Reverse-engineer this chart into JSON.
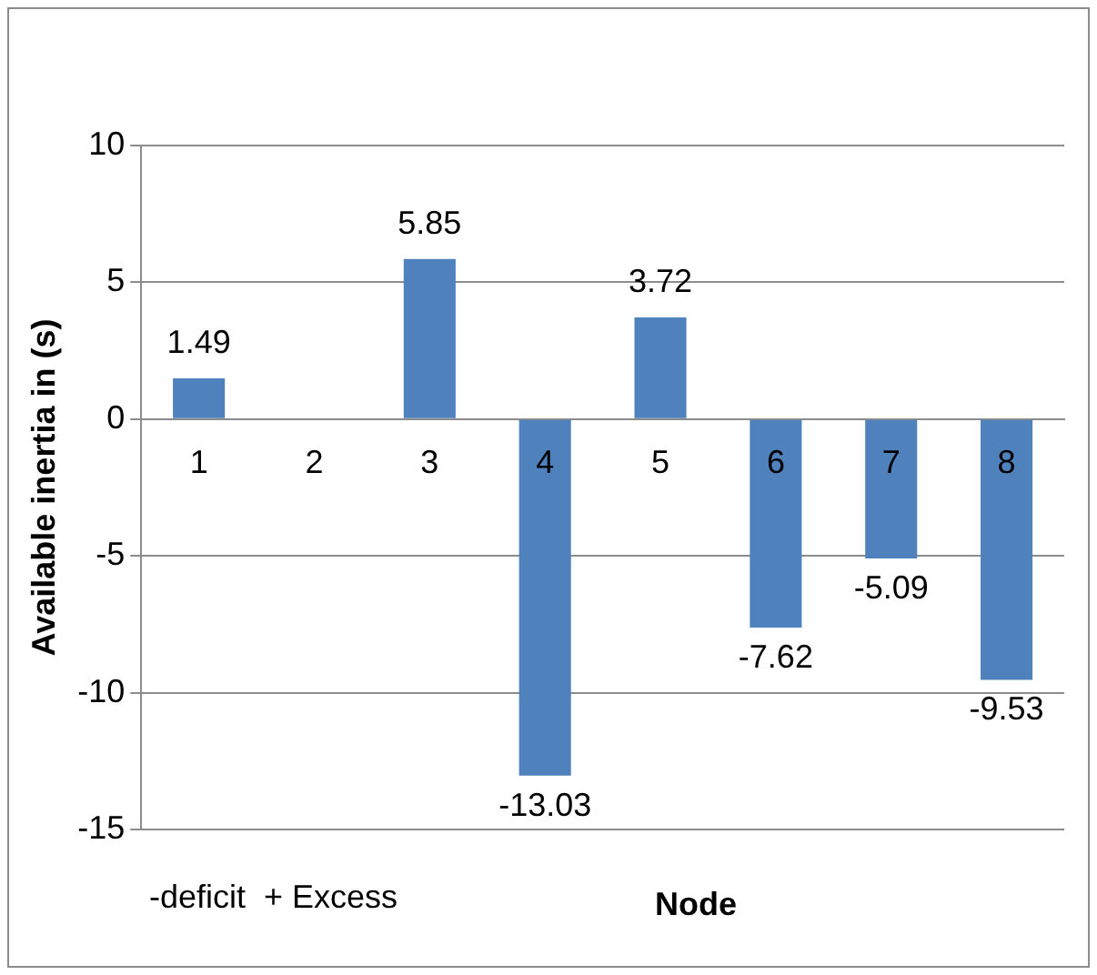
{
  "chart_data": {
    "type": "bar",
    "xlabel": "Node",
    "ylabel": "Available inertia in (s)",
    "categories": [
      "1",
      "2",
      "3",
      "4",
      "5",
      "6",
      "7",
      "8"
    ],
    "values": [
      1.49,
      0,
      5.85,
      -13.03,
      3.72,
      -7.62,
      -5.09,
      -9.53
    ],
    "value_labels": [
      "1.49",
      null,
      "5.85",
      "-13.03",
      "3.72",
      "-7.62",
      "-5.09",
      "-9.53"
    ],
    "color": "#4f81bd",
    "ylim": [
      -15,
      10
    ],
    "yticks": [
      -15,
      -10,
      -5,
      0,
      5,
      10
    ],
    "grid": "y",
    "legend": false,
    "annotations": [
      "-deficit  + Excess"
    ]
  }
}
